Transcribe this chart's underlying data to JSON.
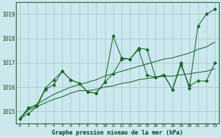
{
  "title": "Graphe pression niveau de la mer (hPa)",
  "background_color": "#cce8ee",
  "grid_color": "#aaccd4",
  "line_color": "#1a6b2a",
  "x_labels": [
    "0",
    "1",
    "2",
    "3",
    "4",
    "5",
    "6",
    "7",
    "8",
    "9",
    "10",
    "11",
    "12",
    "13",
    "14",
    "15",
    "16",
    "17",
    "18",
    "19",
    "20",
    "21",
    "22",
    "23"
  ],
  "ylim": [
    1014.5,
    1019.5
  ],
  "yticks": [
    1015,
    1016,
    1017,
    1018,
    1019
  ],
  "series_marked1": [
    1014.7,
    1014.9,
    1015.2,
    1015.9,
    1016.1,
    1016.65,
    1016.3,
    1016.15,
    1015.8,
    1015.75,
    1016.2,
    1018.1,
    1017.2,
    1017.15,
    1017.6,
    1017.55,
    1016.4,
    1016.5,
    1015.9,
    1017.0,
    1015.95,
    1018.5,
    1019.0,
    1019.2
  ],
  "series_marked2": [
    1014.7,
    1015.15,
    1015.25,
    1015.95,
    1016.3,
    1016.65,
    1016.3,
    1016.15,
    1015.8,
    1015.75,
    1016.2,
    1016.55,
    1017.15,
    1017.15,
    1017.55,
    1016.5,
    1016.4,
    1016.5,
    1015.9,
    1016.9,
    1016.05,
    1016.25,
    1016.25,
    1017.0
  ],
  "series_smooth1": [
    1014.7,
    1015.1,
    1015.3,
    1015.5,
    1015.7,
    1015.85,
    1016.0,
    1016.1,
    1016.2,
    1016.3,
    1016.45,
    1016.55,
    1016.65,
    1016.75,
    1016.85,
    1016.95,
    1017.05,
    1017.15,
    1017.2,
    1017.3,
    1017.4,
    1017.55,
    1017.65,
    1017.85
  ],
  "series_smooth2": [
    1014.7,
    1015.05,
    1015.2,
    1015.35,
    1015.5,
    1015.6,
    1015.75,
    1015.85,
    1015.85,
    1015.9,
    1016.0,
    1016.05,
    1016.15,
    1016.2,
    1016.3,
    1016.35,
    1016.4,
    1016.45,
    1016.45,
    1016.5,
    1016.55,
    1016.6,
    1016.65,
    1016.75
  ]
}
